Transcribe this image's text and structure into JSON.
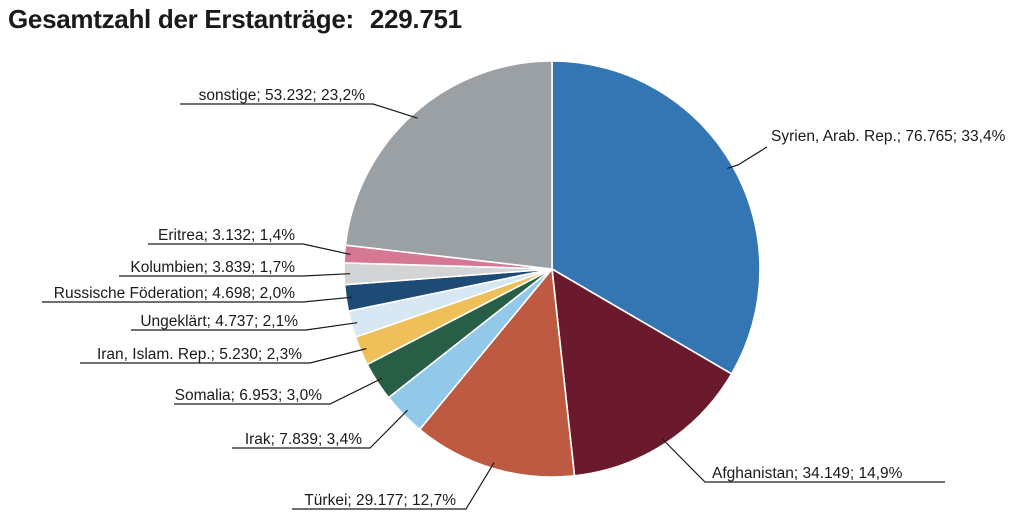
{
  "title": "Gesamtzahl der Erstanträge:",
  "total": "229.751",
  "chart_data": {
    "type": "pie",
    "title": "Gesamtzahl der Erstanträge: 229.751",
    "slices": [
      {
        "name": "Syrien, Arab. Rep.",
        "value": 76765,
        "percent": 33.4,
        "label": "Syrien, Arab. Rep.; 76.765; 33,4%",
        "color": "#3475b3"
      },
      {
        "name": "Afghanistan",
        "value": 34149,
        "percent": 14.9,
        "label": "Afghanistan; 34.149; 14,9%",
        "color": "#6b1a2d"
      },
      {
        "name": "Türkei",
        "value": 29177,
        "percent": 12.7,
        "label": "Türkei; 29.177; 12,7%",
        "color": "#bd5a41"
      },
      {
        "name": "Irak",
        "value": 7839,
        "percent": 3.4,
        "label": "Irak; 7.839; 3,4%",
        "color": "#93c9e8"
      },
      {
        "name": "Somalia",
        "value": 6953,
        "percent": 3.0,
        "label": "Somalia; 6.953; 3,0%",
        "color": "#285e45"
      },
      {
        "name": "Iran, Islam. Rep.",
        "value": 5230,
        "percent": 2.3,
        "label": "Iran, Islam. Rep.; 5.230; 2,3%",
        "color": "#efbf5a"
      },
      {
        "name": "Ungeklärt",
        "value": 4737,
        "percent": 2.1,
        "label": "Ungeklärt; 4.737; 2,1%",
        "color": "#d7e7f3"
      },
      {
        "name": "Russische Föderation",
        "value": 4698,
        "percent": 2.0,
        "label": "Russische Föderation; 4.698; 2,0%",
        "color": "#1e4a76"
      },
      {
        "name": "Kolumbien",
        "value": 3839,
        "percent": 1.7,
        "label": "Kolumbien; 3.839; 1,7%",
        "color": "#d2d4d6"
      },
      {
        "name": "Eritrea",
        "value": 3132,
        "percent": 1.4,
        "label": "Eritrea; 3.132; 1,4%",
        "color": "#d67794"
      },
      {
        "name": "sonstige",
        "value": 53232,
        "percent": 23.2,
        "label": "sonstige; 53.232; 23,2%",
        "color": "#9aa0a4"
      }
    ]
  }
}
